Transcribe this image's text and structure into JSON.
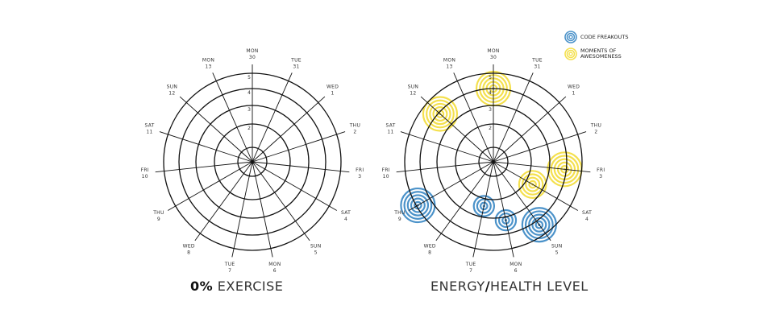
{
  "chart_data": [
    {
      "type": "radar-bubble",
      "title": "0% EXERCISE",
      "title_parts": {
        "bold": "0%",
        "rest": " EXERCISE"
      },
      "radial_ticks": [
        "2",
        "3",
        "4",
        "5"
      ],
      "axis_labels": [
        {
          "day": "MON",
          "date": "30"
        },
        {
          "day": "TUE",
          "date": "31"
        },
        {
          "day": "WED",
          "date": "1"
        },
        {
          "day": "THU",
          "date": "2"
        },
        {
          "day": "FRI",
          "date": "3"
        },
        {
          "day": "SAT",
          "date": "4"
        },
        {
          "day": "SUN",
          "date": "5"
        },
        {
          "day": "MON",
          "date": "6"
        },
        {
          "day": "TUE",
          "date": "7"
        },
        {
          "day": "WED",
          "date": "8"
        },
        {
          "day": "THU",
          "date": "9"
        },
        {
          "day": "FRI",
          "date": "10"
        },
        {
          "day": "SAT",
          "date": "11"
        },
        {
          "day": "SUN",
          "date": "12"
        },
        {
          "day": "MON",
          "date": "13"
        }
      ],
      "points": []
    },
    {
      "type": "radar-bubble",
      "title": "ENERGY/HEALTH LEVEL",
      "title_parts": {
        "rest1": "ENERGY",
        "bold": "/",
        "rest2": "HEALTH LEVEL"
      },
      "radial_ticks": [
        "2",
        "3",
        "4",
        "5"
      ],
      "axis_labels": [
        {
          "day": "MON",
          "date": "30"
        },
        {
          "day": "TUE",
          "date": "31"
        },
        {
          "day": "WED",
          "date": "1"
        },
        {
          "day": "THU",
          "date": "2"
        },
        {
          "day": "FRI",
          "date": "3"
        },
        {
          "day": "SAT",
          "date": "4"
        },
        {
          "day": "SUN",
          "date": "5"
        },
        {
          "day": "MON",
          "date": "6"
        },
        {
          "day": "TUE",
          "date": "7"
        },
        {
          "day": "WED",
          "date": "8"
        },
        {
          "day": "THU",
          "date": "9"
        },
        {
          "day": "FRI",
          "date": "10"
        },
        {
          "day": "SAT",
          "date": "11"
        },
        {
          "day": "SUN",
          "date": "12"
        },
        {
          "day": "MON",
          "date": "13"
        }
      ],
      "series": [
        {
          "name": "MOMENTS OF AWESOMENESS",
          "color": "#f4e04d",
          "points": [
            {
              "day_index": 0,
              "level": 4.0,
              "intensity": 5
            },
            {
              "day_index": 4,
              "level": 3.9,
              "intensity": 5
            },
            {
              "day_index": 5,
              "level": 2.4,
              "intensity": 4
            },
            {
              "day_index": 13,
              "level": 3.9,
              "intensity": 5
            }
          ]
        },
        {
          "name": "CODE FREAKOUTS",
          "color": "#4b92c9",
          "points": [
            {
              "day_index": 6,
              "level": 4.3,
              "intensity": 5
            },
            {
              "day_index": 7,
              "level": 3.2,
              "intensity": 3
            },
            {
              "day_index": 8,
              "level": 2.4,
              "intensity": 3
            },
            {
              "day_index": 10,
              "level": 4.9,
              "intensity": 5
            }
          ]
        }
      ]
    }
  ],
  "legend": [
    {
      "label": "CODE FREAKOUTS",
      "color": "#4b92c9",
      "icon": "target-rings-icon"
    },
    {
      "label": "MOMENTS OF AWESOMENESS",
      "color": "#f4e04d",
      "icon": "target-rings-icon"
    }
  ]
}
